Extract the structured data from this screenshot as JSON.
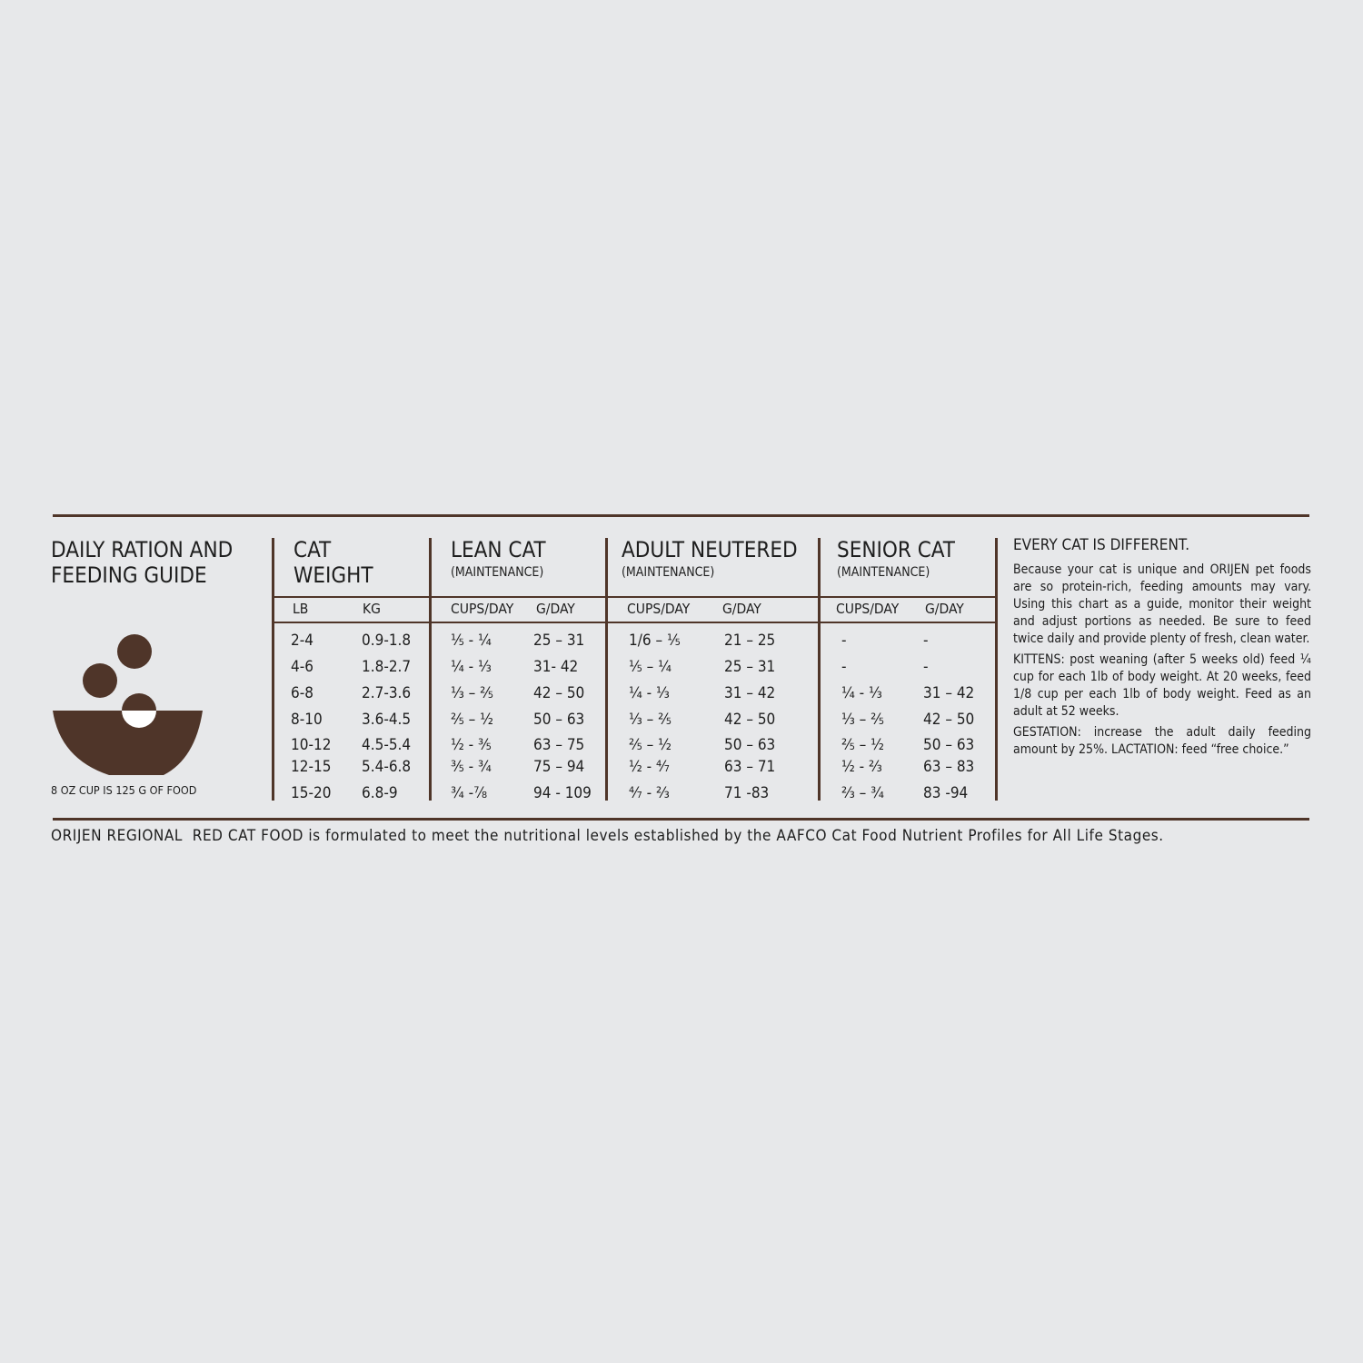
{
  "title": "DAILY RATION AND FEEDING GUIDE",
  "title_line1": "DAILY RATION AND",
  "title_line2": "FEEDING GUIDE",
  "cup_note": "8 OZ CUP IS 125 G OF FOOD",
  "brand_color": "#4f3529",
  "weight": {
    "line1": "CAT",
    "line2": "WEIGHT",
    "lb": "LB",
    "kg": "KG"
  },
  "groups": [
    {
      "title": "LEAN CAT",
      "sub": "(MAINTENANCE)",
      "cups": "CUPS/DAY",
      "g": "G/DAY"
    },
    {
      "title": "ADULT NEUTERED",
      "sub": "(MAINTENANCE)",
      "cups": "CUPS/DAY",
      "g": "G/DAY"
    },
    {
      "title": "SENIOR CAT",
      "sub": "(MAINTENANCE)",
      "cups": "CUPS/DAY",
      "g": "G/DAY"
    }
  ],
  "rows": [
    [
      "2-4",
      "0.9-1.8",
      "⅕ - ¼",
      "25 – 31",
      "1/6 – ⅕",
      "21 – 25",
      "-",
      "-"
    ],
    [
      "4-6",
      "1.8-2.7",
      "¼ - ⅓",
      "31- 42",
      "⅕ – ¼",
      "25 – 31",
      "-",
      "-"
    ],
    [
      "6-8",
      "2.7-3.6",
      "⅓ – ⅖",
      "42 – 50",
      "¼ - ⅓",
      "31 – 42",
      "¼ - ⅓",
      "31 – 42"
    ],
    [
      "8-10",
      "3.6-4.5",
      "⅖ – ½",
      "50 – 63",
      "⅓ – ⅖",
      "42 – 50",
      "⅓ – ⅖",
      "42 – 50"
    ],
    [
      "10-12",
      "4.5-5.4",
      "½ - ⅗",
      "63 – 75",
      "⅖ – ½",
      "50 – 63",
      "⅖ – ½",
      "50 – 63"
    ],
    [
      "12-15",
      "5.4-6.8",
      "⅗ - ¾",
      "75 – 94",
      "½ - ⁴⁄₇",
      "63 – 71",
      "½ - ⅔",
      "63 – 83"
    ],
    [
      "15-20",
      "6.8-9",
      "¾ -⅞",
      "94 - 109",
      "⁴⁄₇ - ⅔",
      "71 -83",
      "⅔ – ¾",
      "83 -94"
    ]
  ],
  "notes": {
    "heading": "EVERY CAT IS DIFFERENT.",
    "p1": "Because your cat is unique and ORIJEN pet foods are so protein-rich, feeding amounts may vary. Using this chart as a guide, monitor their weight and adjust portions as needed. Be sure to feed twice daily and provide plenty of fresh, clean water.",
    "p2": "KITTENS: post weaning (after 5 weeks old) feed ¼ cup for each 1lb of body weight. At 20 weeks, feed 1/8 cup per each 1lb of body weight. Feed as an adult at 52 weeks.",
    "p3": "GESTATION: increase the adult daily feeding amount by 25%. LACTATION: feed “free choice.”"
  },
  "footer": "ORIJEN REGIONAL  RED CAT FOOD is formulated to meet the nutritional levels established by the AAFCO Cat Food Nutrient Profiles for All Life Stages."
}
